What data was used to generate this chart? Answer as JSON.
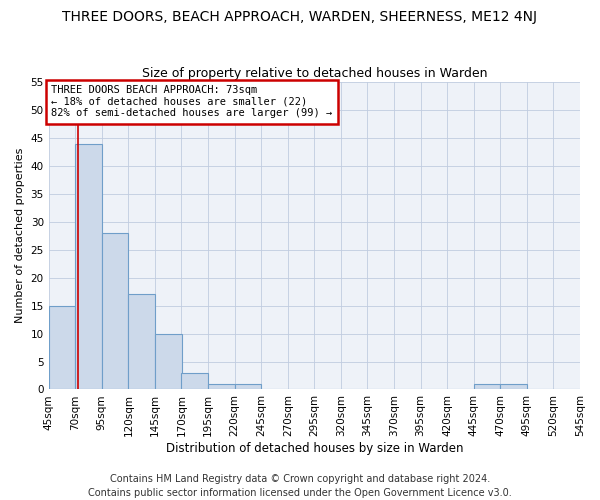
{
  "title": "THREE DOORS, BEACH APPROACH, WARDEN, SHEERNESS, ME12 4NJ",
  "subtitle": "Size of property relative to detached houses in Warden",
  "xlabel": "Distribution of detached houses by size in Warden",
  "ylabel": "Number of detached properties",
  "bar_color": "#ccd9ea",
  "bar_edge_color": "#6f9ec9",
  "background_color": "#eef2f8",
  "grid_color": "#c0cce0",
  "annotation_text": "THREE DOORS BEACH APPROACH: 73sqm\n← 18% of detached houses are smaller (22)\n82% of semi-detached houses are larger (99) →",
  "annotation_box_color": "#ffffff",
  "annotation_border_color": "#cc0000",
  "vline_x": 73,
  "vline_color": "#cc0000",
  "bin_edges": [
    45,
    70,
    95,
    120,
    145,
    170,
    195,
    220,
    245,
    270,
    295,
    320,
    345,
    370,
    395,
    420,
    445,
    470,
    495,
    520,
    545
  ],
  "bin_labels": [
    "45sqm",
    "70sqm",
    "95sqm",
    "120sqm",
    "145sqm",
    "170sqm",
    "195sqm",
    "220sqm",
    "245sqm",
    "270sqm",
    "295sqm",
    "320sqm",
    "345sqm",
    "370sqm",
    "395sqm",
    "420sqm",
    "445sqm",
    "470sqm",
    "495sqm",
    "520sqm",
    "545sqm"
  ],
  "values": [
    15,
    44,
    28,
    17,
    10,
    3,
    1,
    1,
    0,
    0,
    0,
    0,
    0,
    0,
    0,
    0,
    1,
    1,
    0,
    0
  ],
  "ylim": [
    0,
    55
  ],
  "yticks": [
    0,
    5,
    10,
    15,
    20,
    25,
    30,
    35,
    40,
    45,
    50,
    55
  ],
  "footer_text": "Contains HM Land Registry data © Crown copyright and database right 2024.\nContains public sector information licensed under the Open Government Licence v3.0.",
  "title_fontsize": 10,
  "subtitle_fontsize": 9,
  "xlabel_fontsize": 8.5,
  "ylabel_fontsize": 8,
  "tick_fontsize": 7.5,
  "footer_fontsize": 7,
  "annotation_fontsize": 7.5
}
